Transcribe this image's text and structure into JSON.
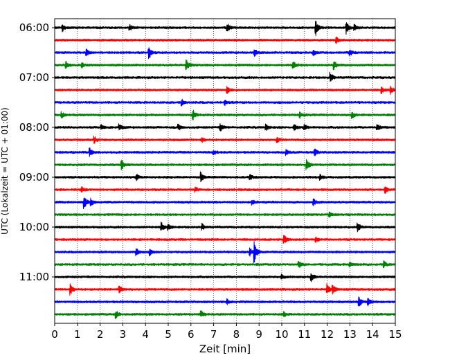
{
  "chart_data": {
    "type": "line",
    "title": "",
    "xlabel": "Zeit  [min]",
    "ylabel": "UTC (Lokalzeit = UTC + 01:00)",
    "xlim": [
      0,
      15
    ],
    "x_ticks": [
      "0",
      "1",
      "2",
      "3",
      "4",
      "5",
      "6",
      "7",
      "8",
      "9",
      "10",
      "11",
      "12",
      "13",
      "14",
      "15"
    ],
    "y_ticks": [
      {
        "label": "06:00",
        "row": 0
      },
      {
        "label": "07:00",
        "row": 4
      },
      {
        "label": "08:00",
        "row": 8
      },
      {
        "label": "09:00",
        "row": 12
      },
      {
        "label": "10:00",
        "row": 16
      },
      {
        "label": "11:00",
        "row": 20
      }
    ],
    "row_count": 24,
    "row_minutes": 15,
    "vertical_grid": "dotted",
    "colors": [
      "#000000",
      "#ff0000",
      "#0000ff",
      "#008000"
    ],
    "series": [
      {
        "start": "06:00",
        "color": "#000000",
        "events": [
          [
            0.35,
            0.7
          ],
          [
            3.3,
            0.6
          ],
          [
            7.6,
            0.9
          ],
          [
            11.5,
            1.5
          ],
          [
            12.85,
            1.3
          ],
          [
            13.2,
            0.5
          ]
        ]
      },
      {
        "start": "06:15",
        "color": "#ff0000",
        "events": [
          [
            12.4,
            0.55
          ]
        ]
      },
      {
        "start": "06:30",
        "color": "#0000ff",
        "events": [
          [
            1.4,
            0.7
          ],
          [
            4.15,
            1.3
          ],
          [
            8.8,
            0.7
          ],
          [
            11.4,
            0.6
          ],
          [
            13.0,
            0.7
          ]
        ]
      },
      {
        "start": "06:45",
        "color": "#008000",
        "events": [
          [
            0.5,
            0.7
          ],
          [
            1.2,
            0.55
          ],
          [
            5.8,
            1.0
          ],
          [
            10.5,
            0.8
          ],
          [
            12.3,
            0.9
          ]
        ]
      },
      {
        "start": "07:00",
        "color": "#000000",
        "events": [
          [
            12.15,
            0.9
          ]
        ]
      },
      {
        "start": "07:15",
        "color": "#ff0000",
        "events": [
          [
            7.6,
            0.7
          ],
          [
            14.8,
            0.8
          ],
          [
            14.4,
            0.6
          ]
        ]
      },
      {
        "start": "07:30",
        "color": "#0000ff",
        "events": [
          [
            5.6,
            0.6
          ],
          [
            7.5,
            0.45
          ]
        ]
      },
      {
        "start": "07:45",
        "color": "#008000",
        "events": [
          [
            0.3,
            0.6
          ],
          [
            6.1,
            1.0
          ],
          [
            13.1,
            0.6
          ],
          [
            10.8,
            0.5
          ]
        ]
      },
      {
        "start": "08:00",
        "color": "#000000",
        "events": [
          [
            2.05,
            0.6
          ],
          [
            2.85,
            0.6
          ],
          [
            5.45,
            0.55
          ],
          [
            7.3,
            0.7
          ],
          [
            9.3,
            0.6
          ],
          [
            10.55,
            0.7
          ],
          [
            11.0,
            0.6
          ],
          [
            14.2,
            0.7
          ]
        ]
      },
      {
        "start": "08:15",
        "color": "#ff0000",
        "events": [
          [
            1.75,
            0.6
          ],
          [
            6.5,
            0.45
          ],
          [
            9.8,
            0.5
          ]
        ]
      },
      {
        "start": "08:30",
        "color": "#0000ff",
        "events": [
          [
            1.55,
            0.8
          ],
          [
            7.0,
            0.5
          ],
          [
            11.45,
            0.7
          ],
          [
            10.2,
            0.45
          ]
        ]
      },
      {
        "start": "08:45",
        "color": "#008000",
        "events": [
          [
            2.95,
            1.0
          ],
          [
            11.1,
            1.0
          ]
        ]
      },
      {
        "start": "09:00",
        "color": "#000000",
        "events": [
          [
            3.6,
            0.55
          ],
          [
            6.45,
            1.0
          ],
          [
            8.6,
            0.5
          ],
          [
            11.7,
            0.5
          ]
        ]
      },
      {
        "start": "09:15",
        "color": "#ff0000",
        "events": [
          [
            1.2,
            0.55
          ],
          [
            14.55,
            0.7
          ],
          [
            6.2,
            0.4
          ]
        ]
      },
      {
        "start": "09:30",
        "color": "#0000ff",
        "events": [
          [
            1.3,
            1.3
          ],
          [
            1.6,
            0.6
          ],
          [
            8.7,
            0.5
          ],
          [
            11.4,
            0.6
          ]
        ]
      },
      {
        "start": "09:45",
        "color": "#008000",
        "events": [
          [
            12.1,
            0.45
          ]
        ]
      },
      {
        "start": "10:00",
        "color": "#000000",
        "events": [
          [
            4.7,
            0.9
          ],
          [
            5.0,
            0.6
          ],
          [
            6.5,
            0.6
          ],
          [
            13.35,
            0.8
          ]
        ]
      },
      {
        "start": "10:15",
        "color": "#ff0000",
        "events": [
          [
            10.1,
            0.9
          ],
          [
            11.5,
            0.5
          ]
        ]
      },
      {
        "start": "10:30",
        "color": "#0000ff",
        "events": [
          [
            3.6,
            0.8
          ],
          [
            4.2,
            0.6
          ],
          [
            8.8,
            2.1
          ],
          [
            8.6,
            0.7
          ]
        ]
      },
      {
        "start": "10:45",
        "color": "#008000",
        "events": [
          [
            10.75,
            0.7
          ],
          [
            13.0,
            0.5
          ],
          [
            14.5,
            0.6
          ]
        ]
      },
      {
        "start": "11:00",
        "color": "#000000",
        "events": [
          [
            11.3,
            0.9
          ],
          [
            10.0,
            0.45
          ]
        ]
      },
      {
        "start": "11:15",
        "color": "#ff0000",
        "events": [
          [
            0.7,
            1.1
          ],
          [
            2.85,
            0.9
          ],
          [
            12.0,
            1.0
          ],
          [
            12.25,
            0.8
          ]
        ]
      },
      {
        "start": "11:30",
        "color": "#0000ff",
        "events": [
          [
            7.6,
            0.5
          ],
          [
            13.4,
            1.0
          ],
          [
            13.8,
            0.8
          ]
        ]
      },
      {
        "start": "11:45",
        "color": "#008000",
        "events": [
          [
            2.7,
            0.7
          ],
          [
            6.45,
            0.6
          ],
          [
            10.1,
            0.45
          ]
        ]
      }
    ]
  }
}
